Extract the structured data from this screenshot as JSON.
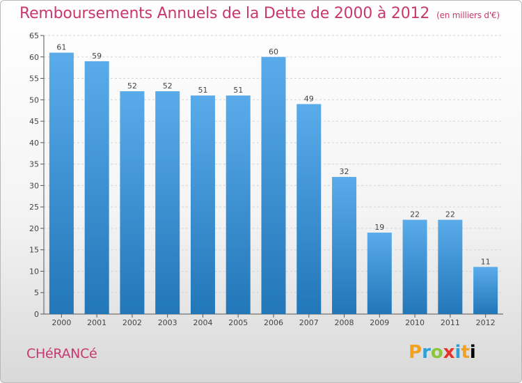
{
  "header": {
    "title": "Remboursements Annuels de la Dette de 2000 à 2012",
    "unit": "(en milliers d'€)"
  },
  "footer": {
    "commune": "CHéRANCé",
    "logo_letters": [
      "P",
      "r",
      "o",
      "x",
      "i",
      "t",
      "i"
    ]
  },
  "colors": {
    "title": "#c8386e",
    "bar_top": "#5aabea",
    "bar_bottom": "#2277b8",
    "label": "#444444"
  },
  "chart_data": {
    "type": "bar",
    "title": "Remboursements Annuels de la Dette de 2000 à 2012",
    "xlabel": "",
    "ylabel": "",
    "categories": [
      "2000",
      "2001",
      "2002",
      "2003",
      "2004",
      "2005",
      "2006",
      "2007",
      "2008",
      "2009",
      "2010",
      "2011",
      "2012"
    ],
    "values": [
      61,
      59,
      52,
      52,
      51,
      51,
      60,
      49,
      32,
      19,
      22,
      22,
      11
    ],
    "ylim": [
      0,
      65
    ],
    "yticks": [
      0,
      5,
      10,
      15,
      20,
      25,
      30,
      35,
      40,
      45,
      50,
      55,
      60,
      65
    ],
    "grid": true,
    "data_labels": true
  }
}
